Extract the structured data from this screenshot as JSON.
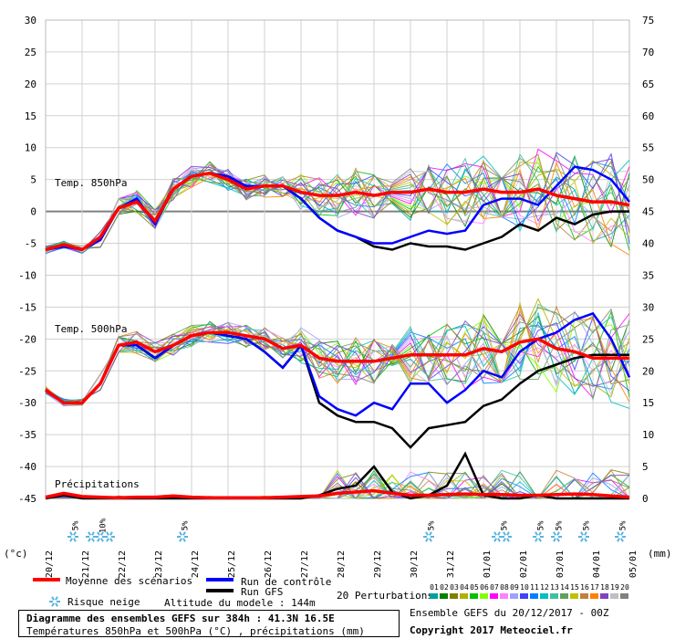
{
  "chart_data": {
    "type": "line",
    "title": "Diagramme des ensembles GEFS sur 384h : 41.3N 16.5E",
    "subtitle": "Températures 850hPa et 500hPa (°C) , précipitations (mm)",
    "left_axis": {
      "label": "(°c)",
      "ticks": [
        30,
        25,
        20,
        15,
        10,
        5,
        0,
        -5,
        -10,
        -15,
        -20,
        -25,
        -30,
        -35,
        -40,
        -45
      ],
      "range": [
        -45,
        30
      ]
    },
    "right_axis": {
      "label": "(mm)",
      "ticks": [
        75,
        70,
        65,
        60,
        55,
        50,
        45,
        40,
        35,
        30,
        25,
        20,
        15,
        10,
        5,
        0
      ],
      "range": [
        0,
        75
      ]
    },
    "x_labels": [
      "20/12",
      "21/12",
      "22/12",
      "23/12",
      "24/12",
      "25/12",
      "26/12",
      "27/12",
      "28/12",
      "29/12",
      "30/12",
      "31/12",
      "01/01",
      "02/01",
      "03/01",
      "04/01",
      "05/01"
    ],
    "x_range_days": [
      0,
      16
    ],
    "panel_labels": [
      "Temp. 850hPa",
      "Temp. 500hPa",
      "Précipitations"
    ],
    "snow_risk": [
      {
        "day": 0.75,
        "label": "5%",
        "count": 1
      },
      {
        "day": 1.5,
        "label": "10%",
        "count": 3
      },
      {
        "day": 3.75,
        "label": "5%",
        "count": 1
      },
      {
        "day": 10.5,
        "label": "5%",
        "count": 1
      },
      {
        "day": 12.5,
        "label": "5%",
        "count": 2
      },
      {
        "day": 13.5,
        "label": "5%",
        "count": 1
      },
      {
        "day": 14.0,
        "label": "5%",
        "count": 1
      },
      {
        "day": 14.75,
        "label": "5%",
        "count": 1
      },
      {
        "day": 15.75,
        "label": "5%",
        "count": 1
      }
    ],
    "series": [
      {
        "name": "Moyenne des scénarios",
        "color": "#ff0000",
        "group": "t850",
        "x": [
          0,
          0.5,
          1,
          1.5,
          2,
          2.5,
          3,
          3.5,
          4,
          4.5,
          5,
          5.5,
          6,
          6.5,
          7,
          7.5,
          8,
          8.5,
          9,
          9.5,
          10,
          10.5,
          11,
          11.5,
          12,
          12.5,
          13,
          13.5,
          14,
          14.5,
          15,
          15.5,
          16
        ],
        "y": [
          -6,
          -5.2,
          -6,
          -4,
          0.5,
          1.5,
          -1.5,
          3.5,
          5.5,
          6,
          5,
          3.5,
          4,
          4,
          3,
          2.5,
          2.5,
          3,
          2.5,
          3,
          3,
          3.5,
          3,
          3,
          3.5,
          3,
          3,
          3.5,
          2.5,
          2,
          1.5,
          1.5,
          1
        ]
      },
      {
        "name": "Run de contrôle",
        "color": "#0000ff",
        "group": "t850",
        "x": [
          0,
          0.5,
          1,
          1.5,
          2,
          2.5,
          3,
          3.5,
          4,
          4.5,
          5,
          5.5,
          6,
          6.5,
          7,
          7.5,
          8,
          8.5,
          9,
          9.5,
          10,
          10.5,
          11,
          11.5,
          12,
          12.5,
          13,
          13.5,
          14,
          14.5,
          15,
          15.5,
          16
        ],
        "y": [
          -6,
          -5.5,
          -6,
          -4.5,
          0.5,
          2,
          -2,
          3.5,
          5.5,
          6,
          5.5,
          4,
          4,
          4,
          2,
          -1,
          -3,
          -4,
          -5,
          -5,
          -4,
          -3,
          -3.5,
          -3,
          1,
          2,
          2,
          1,
          4,
          7,
          6.5,
          5,
          1.5
        ]
      },
      {
        "name": "Run GFS",
        "color": "#000000",
        "group": "t850",
        "x": [
          0,
          0.5,
          1,
          1.5,
          2,
          2.5,
          3,
          3.5,
          4,
          4.5,
          5,
          5.5,
          6,
          6.5,
          7,
          7.5,
          8,
          8.5,
          9,
          9.5,
          10,
          10.5,
          11,
          11.5,
          12,
          12.5,
          13,
          13.5,
          14,
          14.5,
          15,
          15.5,
          16
        ],
        "y": [
          -6,
          -5.5,
          -6,
          -4.5,
          0.5,
          1.5,
          -1.5,
          3.5,
          5.5,
          6,
          5.5,
          4,
          4,
          4,
          2,
          -1,
          -3,
          -4,
          -5.5,
          -6,
          -5,
          -5.5,
          -5.5,
          -6,
          -5,
          -4,
          -2,
          -3,
          -1,
          -2,
          -0.5,
          0,
          0
        ]
      },
      {
        "name": "Moyenne des scénarios",
        "color": "#ff0000",
        "group": "t500",
        "x": [
          0,
          0.5,
          1,
          1.5,
          2,
          2.5,
          3,
          3.5,
          4,
          4.5,
          5,
          5.5,
          6,
          6.5,
          7,
          7.5,
          8,
          8.5,
          9,
          9.5,
          10,
          10.5,
          11,
          11.5,
          12,
          12.5,
          13,
          13.5,
          14,
          14.5,
          15,
          15.5,
          16
        ],
        "y": [
          -28,
          -30,
          -30,
          -27,
          -21,
          -20.5,
          -22,
          -21,
          -19.5,
          -19,
          -19,
          -19.5,
          -20,
          -21.5,
          -21,
          -23,
          -23.5,
          -23.5,
          -23.5,
          -23,
          -22.5,
          -22.5,
          -22.5,
          -22.5,
          -21.5,
          -22,
          -20.5,
          -20,
          -21.5,
          -22,
          -23,
          -23,
          -23
        ]
      },
      {
        "name": "Run de contrôle",
        "color": "#0000ff",
        "group": "t500",
        "x": [
          0,
          0.5,
          1,
          1.5,
          2,
          2.5,
          3,
          3.5,
          4,
          4.5,
          5,
          5.5,
          6,
          6.5,
          7,
          7.5,
          8,
          8.5,
          9,
          9.5,
          10,
          10.5,
          11,
          11.5,
          12,
          12.5,
          13,
          13.5,
          14,
          14.5,
          15,
          15.5,
          16
        ],
        "y": [
          -28,
          -30,
          -30,
          -27,
          -21,
          -21,
          -23,
          -21,
          -19.5,
          -19,
          -19.5,
          -20,
          -22,
          -24.5,
          -21,
          -29,
          -31,
          -32,
          -30,
          -31,
          -27,
          -27,
          -30,
          -28,
          -25,
          -26,
          -22,
          -20,
          -19,
          -17,
          -16,
          -20,
          -26
        ]
      },
      {
        "name": "Run GFS",
        "color": "#000000",
        "group": "t500",
        "x": [
          0,
          0.5,
          1,
          1.5,
          2,
          2.5,
          3,
          3.5,
          4,
          4.5,
          5,
          5.5,
          6,
          6.5,
          7,
          7.5,
          8,
          8.5,
          9,
          9.5,
          10,
          10.5,
          11,
          11.5,
          12,
          12.5,
          13,
          13.5,
          14,
          14.5,
          15,
          15.5,
          16
        ],
        "y": [
          -28,
          -30,
          -30,
          -27,
          -21,
          -21,
          -23,
          -21,
          -19.5,
          -19,
          -19.5,
          -20,
          -22,
          -24.5,
          -21,
          -30,
          -32,
          -33,
          -33,
          -34,
          -37,
          -34,
          -33.5,
          -33,
          -30.5,
          -29.5,
          -27,
          -25,
          -24,
          -23,
          -22.5,
          -22.5,
          -22.5
        ]
      },
      {
        "name": "Moyenne des scénarios",
        "color": "#ff0000",
        "group": "precip",
        "x": [
          0,
          0.5,
          1,
          1.5,
          2,
          2.5,
          3,
          3.5,
          4,
          4.5,
          5,
          5.5,
          6,
          6.5,
          7,
          7.5,
          8,
          8.5,
          9,
          9.5,
          10,
          10.5,
          11,
          11.5,
          12,
          12.5,
          13,
          13.5,
          14,
          14.5,
          15,
          15.5,
          16
        ],
        "y": [
          0.2,
          0.8,
          0.3,
          0.2,
          0.1,
          0.2,
          0.2,
          0.4,
          0.2,
          0.1,
          0.1,
          0.1,
          0.1,
          0.2,
          0.3,
          0.4,
          0.8,
          1.0,
          1.2,
          0.8,
          0.5,
          0.5,
          0.6,
          0.7,
          0.6,
          0.6,
          0.5,
          0.5,
          0.6,
          0.7,
          0.6,
          0.4,
          0.2
        ]
      },
      {
        "name": "Run GFS",
        "color": "#000000",
        "group": "precip",
        "x": [
          0,
          0.5,
          1,
          1.5,
          2,
          2.5,
          3,
          3.5,
          4,
          4.5,
          5,
          5.5,
          6,
          6.5,
          7,
          7.5,
          8,
          8.5,
          9,
          9.5,
          10,
          10.5,
          11,
          11.5,
          12,
          12.5,
          13,
          13.5,
          14,
          14.5,
          15,
          15.5,
          16
        ],
        "y": [
          0,
          0.5,
          0,
          0,
          0,
          0,
          0,
          0,
          0,
          0,
          0,
          0,
          0,
          0,
          0,
          0.5,
          1.5,
          2,
          5,
          1,
          0,
          0.5,
          2,
          7,
          0.5,
          0,
          0,
          0.5,
          0,
          0,
          0,
          0,
          0
        ]
      }
    ],
    "perturbations_label": "20 Perturbations",
    "perturbation_ids": [
      "01",
      "02",
      "03",
      "04",
      "05",
      "06",
      "07",
      "08",
      "09",
      "10",
      "11",
      "12",
      "13",
      "14",
      "15",
      "16",
      "17",
      "18",
      "19",
      "20"
    ],
    "perturbation_colors": [
      "#00a0a0",
      "#008000",
      "#808000",
      "#b0b000",
      "#00c000",
      "#80ff00",
      "#ff00ff",
      "#ff80ff",
      "#a0a0ff",
      "#4040ff",
      "#0080ff",
      "#00c0c0",
      "#40c0a0",
      "#60a060",
      "#c0c000",
      "#c08040",
      "#ff8000",
      "#8040c0",
      "#c0c0c0",
      "#808080"
    ],
    "legend": {
      "mean": "Moyenne des scénarios",
      "control": "Run de contrôle",
      "gfs": "Run GFS",
      "snow": "Risque neige",
      "altitude": "Altitude du modele : 144m"
    }
  },
  "footer": {
    "run_info": "Ensemble GEFS du 20/12/2017 - 00Z",
    "copyright": "Copyright 2017 Meteociel.fr"
  }
}
